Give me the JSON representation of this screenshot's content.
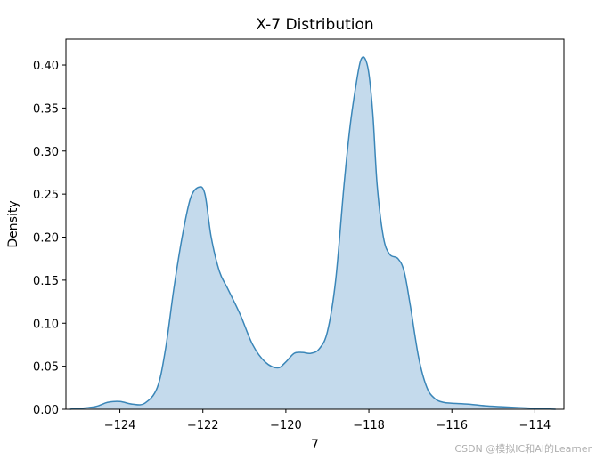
{
  "chart_data": {
    "type": "area",
    "title": "X-7 Distribution",
    "xlabel": "7",
    "ylabel": "Density",
    "xlim": [
      -125.3,
      -113.3
    ],
    "ylim": [
      0,
      0.43
    ],
    "xticks": [
      -124,
      -122,
      -120,
      -118,
      -116,
      -114
    ],
    "xtick_labels": [
      "−124",
      "−122",
      "−120",
      "−118",
      "−116",
      "−114"
    ],
    "yticks": [
      0.0,
      0.05,
      0.1,
      0.15,
      0.2,
      0.25,
      0.3,
      0.35,
      0.4
    ],
    "ytick_labels": [
      "0.00",
      "0.05",
      "0.10",
      "0.15",
      "0.20",
      "0.25",
      "0.30",
      "0.35",
      "0.40"
    ],
    "grid": false,
    "colors": {
      "line": "#3a86b8",
      "fill": "#c4daec"
    },
    "series": [
      {
        "x": [
          -125.2,
          -124.6,
          -124.3,
          -124.0,
          -123.7,
          -123.4,
          -123.1,
          -122.9,
          -122.7,
          -122.5,
          -122.3,
          -122.1,
          -121.95,
          -121.8,
          -121.6,
          -121.4,
          -121.1,
          -120.8,
          -120.5,
          -120.2,
          -120.0,
          -119.8,
          -119.6,
          -119.4,
          -119.2,
          -119.0,
          -118.8,
          -118.6,
          -118.45,
          -118.3,
          -118.2,
          -118.1,
          -118.0,
          -117.9,
          -117.8,
          -117.65,
          -117.5,
          -117.3,
          -117.15,
          -117.0,
          -116.8,
          -116.6,
          -116.4,
          -116.2,
          -116.0,
          -115.6,
          -115.2,
          -114.8,
          -114.4,
          -114.0,
          -113.5
        ],
        "y": [
          0.0,
          0.003,
          0.008,
          0.009,
          0.006,
          0.007,
          0.025,
          0.07,
          0.14,
          0.2,
          0.245,
          0.258,
          0.25,
          0.2,
          0.16,
          0.14,
          0.11,
          0.075,
          0.055,
          0.048,
          0.055,
          0.065,
          0.066,
          0.065,
          0.07,
          0.09,
          0.15,
          0.26,
          0.33,
          0.38,
          0.405,
          0.408,
          0.39,
          0.34,
          0.26,
          0.2,
          0.18,
          0.175,
          0.16,
          0.12,
          0.06,
          0.025,
          0.012,
          0.008,
          0.007,
          0.006,
          0.004,
          0.003,
          0.002,
          0.001,
          0.0
        ]
      }
    ]
  },
  "watermark": "CSDN @模拟IC和AI的Learner"
}
